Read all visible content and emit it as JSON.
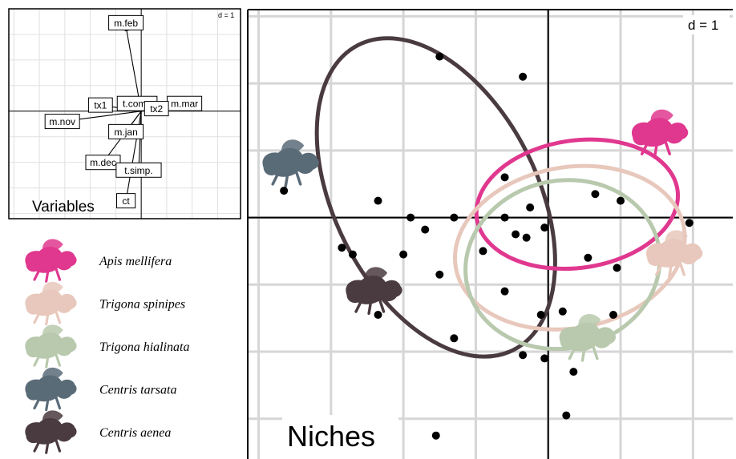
{
  "chart_data": [
    {
      "type": "scatter",
      "panel": "variables",
      "title": "Variables",
      "d_label": "d = 1",
      "xlim": [
        -2.6,
        1.95
      ],
      "ylim": [
        -2.1,
        2.0
      ],
      "grid": true,
      "origin": [
        0,
        0
      ],
      "arrows": [
        {
          "label": "m.feb",
          "x": -0.3,
          "y": 1.65
        },
        {
          "label": "t.comp",
          "x": -0.08,
          "y": 0.15
        },
        {
          "label": "m.mar",
          "x": 0.85,
          "y": 0.15
        },
        {
          "label": "tx2",
          "x": 0.3,
          "y": 0.05
        },
        {
          "label": "tx1",
          "x": -0.8,
          "y": 0.12
        },
        {
          "label": "m.nov",
          "x": -1.55,
          "y": -0.2
        },
        {
          "label": "m.jan",
          "x": -0.3,
          "y": -0.4
        },
        {
          "label": "m.dec",
          "x": -0.75,
          "y": -1.0
        },
        {
          "label": "t.simp.",
          "x": -0.05,
          "y": -1.15
        },
        {
          "label": "ct",
          "x": -0.3,
          "y": -1.75
        }
      ],
      "hidden_labels": [
        "t.",
        "t."
      ]
    },
    {
      "type": "scatter",
      "panel": "niches",
      "title": "Niches",
      "d_label": "d = 1",
      "xlim": [
        -4.15,
        2.55
      ],
      "ylim": [
        -3.6,
        3.1
      ],
      "grid": true,
      "points": [
        [
          -1.5,
          2.4
        ],
        [
          -0.35,
          2.1
        ],
        [
          -0.6,
          0.6
        ],
        [
          -2.35,
          0.25
        ],
        [
          -1.9,
          0.0
        ],
        [
          -1.7,
          -0.18
        ],
        [
          -1.3,
          0.0
        ],
        [
          -0.9,
          -0.5
        ],
        [
          -0.6,
          0.0
        ],
        [
          -0.45,
          -0.25
        ],
        [
          -0.3,
          -0.3
        ],
        [
          -0.25,
          0.15
        ],
        [
          -0.05,
          -0.15
        ],
        [
          0.55,
          -0.6
        ],
        [
          0.65,
          0.35
        ],
        [
          1.0,
          0.25
        ],
        [
          -2.85,
          -0.45
        ],
        [
          -2.7,
          -0.55
        ],
        [
          -2.0,
          -0.55
        ],
        [
          -1.5,
          -0.85
        ],
        [
          -0.6,
          -1.1
        ],
        [
          -0.1,
          -1.45
        ],
        [
          -2.35,
          -1.45
        ],
        [
          -1.3,
          -1.8
        ],
        [
          0.2,
          -1.4
        ],
        [
          0.95,
          -0.75
        ],
        [
          0.9,
          -1.45
        ],
        [
          -0.35,
          -2.05
        ],
        [
          -0.05,
          -2.1
        ],
        [
          0.35,
          -2.3
        ],
        [
          0.25,
          -2.95
        ],
        [
          -1.55,
          -3.25
        ],
        [
          1.95,
          -0.08
        ],
        [
          -3.65,
          0.4
        ]
      ],
      "ellipses": [
        {
          "species": "Centris aenea",
          "color": "#4a3b40",
          "cx": -1.55,
          "cy": 0.3,
          "rx": 1.4,
          "ry": 2.55,
          "angle": -27
        },
        {
          "species": "Apis mellifera",
          "color": "#e0388f",
          "cx": 0.4,
          "cy": 0.2,
          "rx": 1.4,
          "ry": 0.95,
          "angle": -8
        },
        {
          "species": "Trigona spinipes",
          "color": "#e8c8bc",
          "cx": 0.3,
          "cy": -0.45,
          "rx": 1.6,
          "ry": 1.2,
          "angle": -10
        },
        {
          "species": "Trigona hialinata",
          "color": "#b8c9ad",
          "cx": 0.2,
          "cy": -0.7,
          "rx": 1.35,
          "ry": 1.25,
          "angle": -12
        }
      ],
      "silhouettes": [
        {
          "species": "Apis mellifera",
          "color": "#e0388f",
          "x": 1.55,
          "y": 1.25
        },
        {
          "species": "Trigona spinipes",
          "color": "#e8c8bc",
          "x": 1.75,
          "y": -0.55
        },
        {
          "species": "Trigona hialinata",
          "color": "#b8c9ad",
          "x": 0.55,
          "y": -1.8
        },
        {
          "species": "Centris tarsata",
          "color": "#5a6b78",
          "x": -3.55,
          "y": 0.8
        },
        {
          "species": "Centris aenea",
          "color": "#4a3b40",
          "x": -2.4,
          "y": -1.1
        }
      ],
      "legend": {
        "placement": "left",
        "entries": [
          {
            "label": "Apis mellifera",
            "color": "#e0388f"
          },
          {
            "label": "Trigona spinipes",
            "color": "#e8c8bc"
          },
          {
            "label": "Trigona hialinata",
            "color": "#b8c9ad"
          },
          {
            "label": "Centris tarsata",
            "color": "#5a6b78"
          },
          {
            "label": "Centris aenea",
            "color": "#4a3b40"
          }
        ]
      }
    }
  ]
}
